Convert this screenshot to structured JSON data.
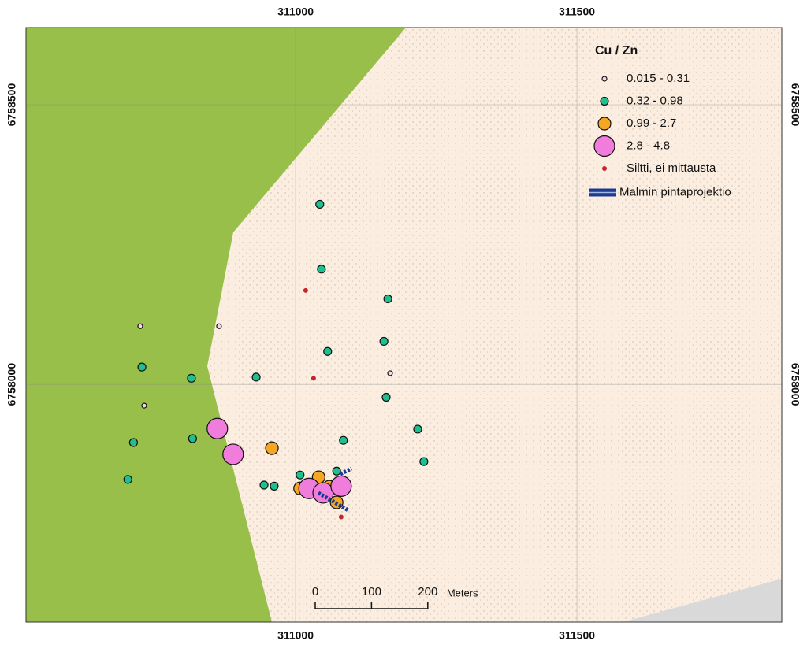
{
  "map": {
    "xlim": [
      310521,
      311864
    ],
    "ylim": [
      6757575,
      6758638
    ],
    "xticks": [
      311000,
      311500
    ],
    "yticks": [
      6758500,
      6758000
    ],
    "grid": true,
    "legend": {
      "title": "Cu / Zn"
    },
    "classes": [
      {
        "label": "0.015 - 0.31",
        "color": "#f7d6ea",
        "points": {
          "x": [
            310724,
            310864,
            310731,
            311168
          ],
          "y": [
            6758104,
            6758104,
            6757962,
            6758020
          ]
        }
      },
      {
        "label": "0.32 - 0.98",
        "color": "#1fbf8f",
        "points": {
          "x": [
            311043,
            311046,
            311164,
            311057,
            311157,
            310727,
            310815,
            310930,
            311161,
            310817,
            310712,
            311217,
            311228,
            310702,
            311085,
            310944,
            310962,
            311008,
            311073
          ],
          "y": [
            6758322,
            6758206,
            6758153,
            6758059,
            6758077,
            6758031,
            6758011,
            6758013,
            6757977,
            6757903,
            6757896,
            6757920,
            6757862,
            6757830,
            6757900,
            6757820,
            6757818,
            6757838,
            6757845
          ]
        }
      },
      {
        "label": "0.99 - 2.7",
        "color": "#f5a623",
        "points": {
          "x": [
            310958,
            311041,
            311008,
            311060,
            311073
          ],
          "y": [
            6757886,
            6757834,
            6757814,
            6757817,
            6757789
          ]
        }
      },
      {
        "label": "2.8 - 4.8",
        "color": "#f07cdc",
        "points": {
          "x": [
            310861,
            310889,
            311024,
            311049,
            311081
          ],
          "y": [
            6757921,
            6757875,
            6757814,
            6757806,
            6757818
          ]
        }
      },
      {
        "label": "Siltti, ei mittausta",
        "color": "#c0282d",
        "points": {
          "x": [
            311018,
            311032,
            311081
          ],
          "y": [
            6758168,
            6758011,
            6757763
          ]
        }
      }
    ],
    "ore_label": "Malmin pintaprojektio",
    "scale_bar": {
      "ticks": [
        0,
        100,
        200
      ],
      "unit": "Meters"
    }
  }
}
